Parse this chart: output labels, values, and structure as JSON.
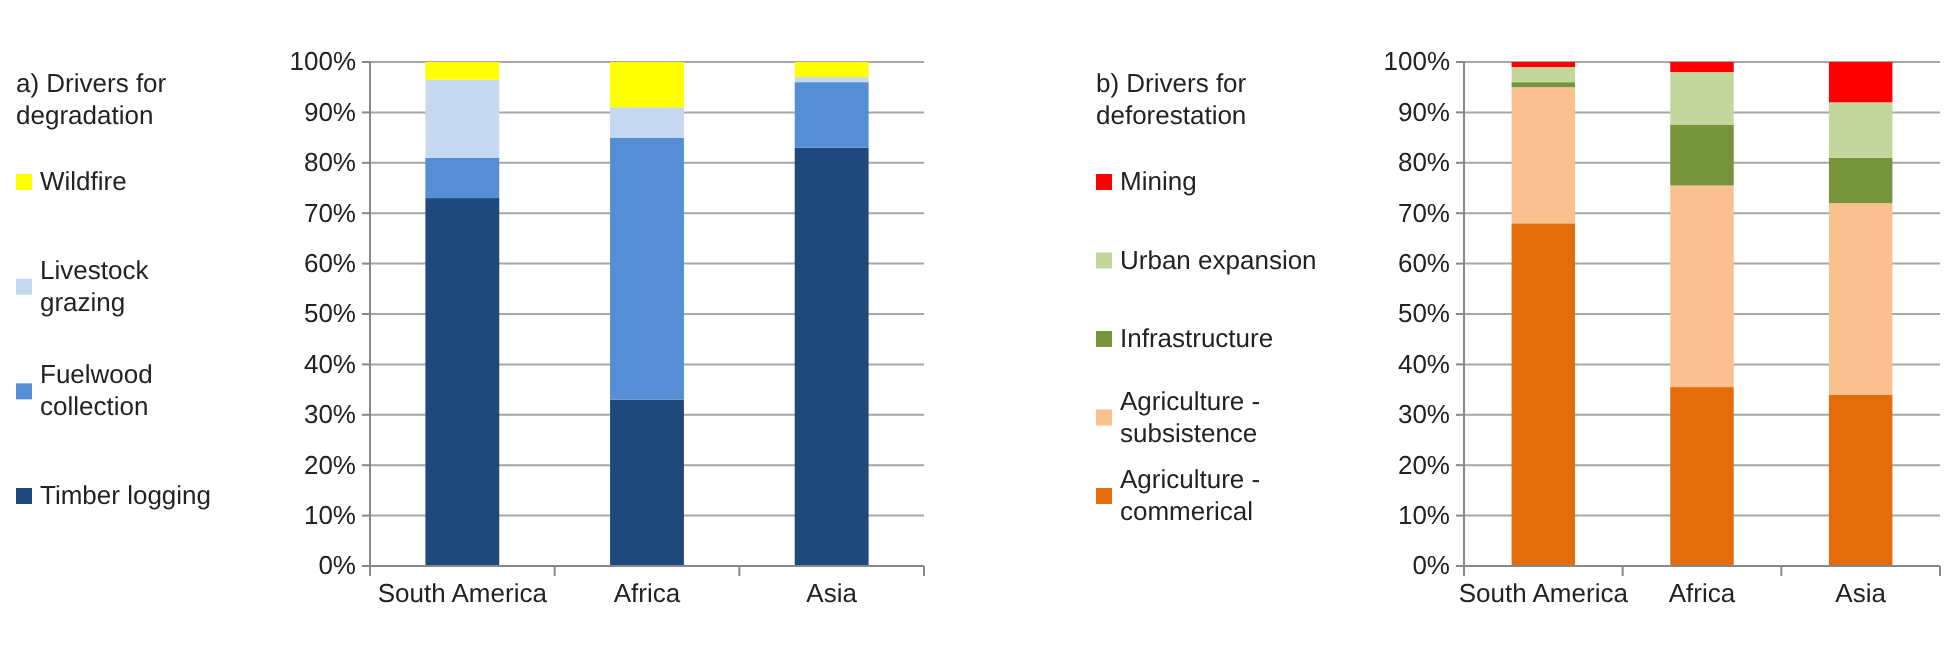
{
  "chart_data": [
    {
      "type": "bar",
      "title": "a) Drivers for degradation",
      "categories": [
        "South America",
        "Africa",
        "Asia"
      ],
      "stacked": true,
      "ylim": [
        0,
        100
      ],
      "yticks": [
        {
          "value": 0,
          "label": "0%"
        },
        {
          "value": 10,
          "label": "10%"
        },
        {
          "value": 20,
          "label": "20%"
        },
        {
          "value": 30,
          "label": "30%"
        },
        {
          "value": 40,
          "label": "40%"
        },
        {
          "value": 50,
          "label": "50%"
        },
        {
          "value": 60,
          "label": "60%"
        },
        {
          "value": 70,
          "label": "70%"
        },
        {
          "value": 80,
          "label": "80%"
        },
        {
          "value": 90,
          "label": "90%"
        },
        {
          "value": 100,
          "label": "100%"
        }
      ],
      "grid": "y",
      "legend": "left",
      "series": [
        {
          "name": "Timber logging",
          "color": "#1f497d",
          "values": [
            73,
            33,
            83
          ]
        },
        {
          "name": "Fuelwood collection",
          "color": "#558ed5",
          "values": [
            8,
            52,
            13
          ]
        },
        {
          "name": "Livestock grazing",
          "color": "#c6d9f1",
          "values": [
            15.5,
            6,
            1
          ]
        },
        {
          "name": "Wildfire",
          "color": "#ffff00",
          "values": [
            3.5,
            9,
            3
          ]
        }
      ]
    },
    {
      "type": "bar",
      "title": "b) Drivers for deforestation",
      "categories": [
        "South America",
        "Africa",
        "Asia"
      ],
      "stacked": true,
      "ylim": [
        0,
        100
      ],
      "yticks": [
        {
          "value": 0,
          "label": "0%"
        },
        {
          "value": 10,
          "label": "10%"
        },
        {
          "value": 20,
          "label": "20%"
        },
        {
          "value": 30,
          "label": "30%"
        },
        {
          "value": 40,
          "label": "40%"
        },
        {
          "value": 50,
          "label": "50%"
        },
        {
          "value": 60,
          "label": "60%"
        },
        {
          "value": 70,
          "label": "70%"
        },
        {
          "value": 80,
          "label": "80%"
        },
        {
          "value": 90,
          "label": "90%"
        },
        {
          "value": 100,
          "label": "100%"
        }
      ],
      "grid": "y",
      "legend": "left",
      "series": [
        {
          "name": "Agriculture - commerical",
          "color": "#e46c0a",
          "values": [
            68,
            35.5,
            34
          ]
        },
        {
          "name": "Agriculture - subsistence",
          "color": "#fac090",
          "values": [
            27,
            40,
            38
          ]
        },
        {
          "name": "Infrastructure",
          "color": "#77933c",
          "values": [
            1,
            12,
            9
          ]
        },
        {
          "name": "Urban expansion",
          "color": "#c3d69b",
          "values": [
            3,
            10.5,
            11
          ]
        },
        {
          "name": "Mining",
          "color": "#ff0000",
          "values": [
            1,
            2,
            8
          ]
        }
      ]
    }
  ]
}
